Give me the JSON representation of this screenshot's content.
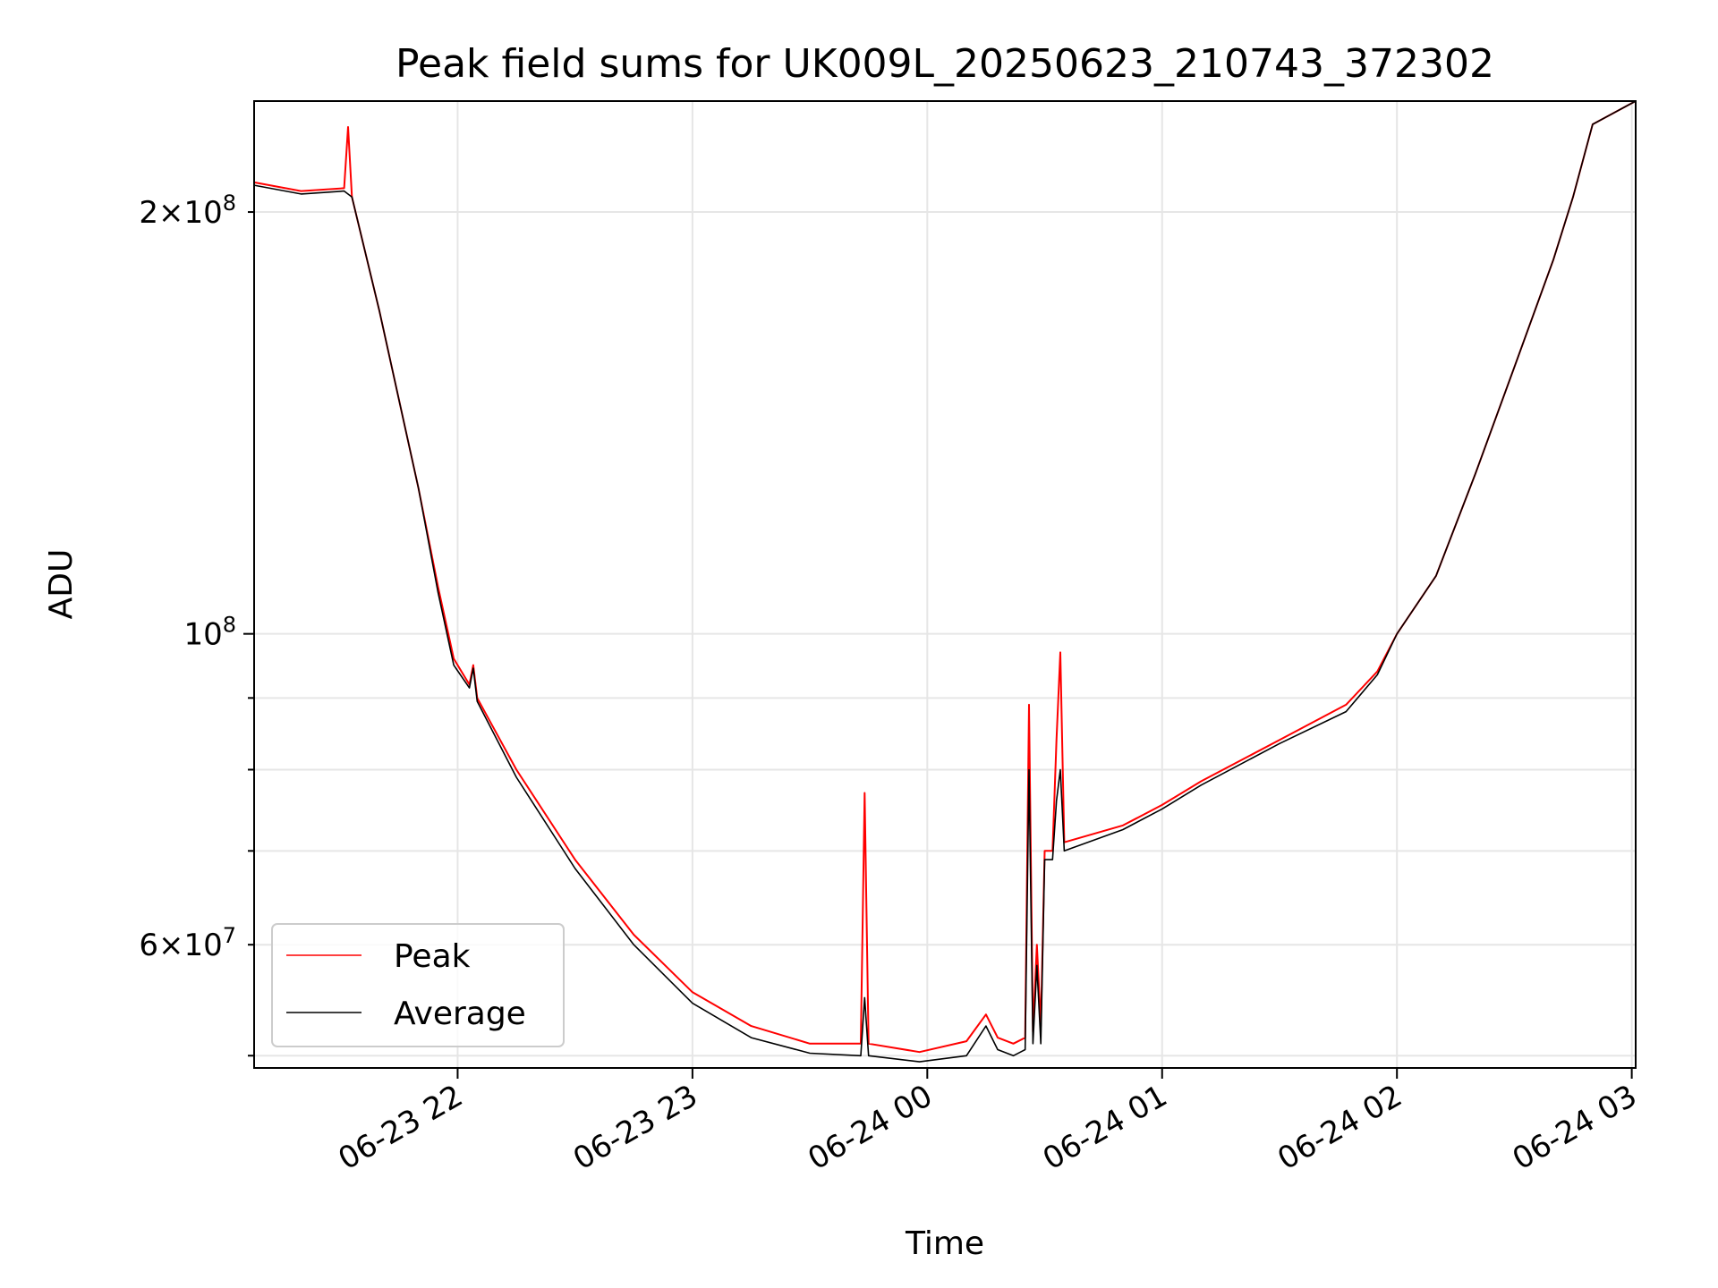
{
  "chart_data": {
    "type": "line",
    "title": "Peak field sums for UK009L_20250623_210743_372302",
    "xlabel": "Time",
    "ylabel": "ADU",
    "y_scale": "log",
    "ylim": [
      49000000,
      240000000
    ],
    "xlim": [
      "2025-06-23 21:08",
      "2025-06-24 03:01"
    ],
    "grid": true,
    "legend_position": "lower-left",
    "x_ticks": [
      {
        "label": "06-23 22",
        "t": "2025-06-23 22:00"
      },
      {
        "label": "06-23 23",
        "t": "2025-06-23 23:00"
      },
      {
        "label": "06-24 00",
        "t": "2025-06-24 00:00"
      },
      {
        "label": "06-24 01",
        "t": "2025-06-24 01:00"
      },
      {
        "label": "06-24 02",
        "t": "2025-06-24 02:00"
      },
      {
        "label": "06-24 03",
        "t": "2025-06-24 03:00"
      }
    ],
    "y_ticks_major": [
      {
        "label_base": "10",
        "label_exp": "8",
        "label_coef": "",
        "value": 100000000
      }
    ],
    "y_ticks_minor_labeled": [
      {
        "label_coef": "2",
        "label_base": "10",
        "label_exp": "8",
        "value": 200000000
      },
      {
        "label_coef": "6",
        "label_base": "10",
        "label_exp": "7",
        "value": 60000000
      }
    ],
    "y_ticks_minor_unlabeled": [
      50000000,
      70000000,
      80000000,
      90000000
    ],
    "series": [
      {
        "name": "Peak",
        "color": "#ff0000",
        "x": [
          "2025-06-23 21:08",
          "2025-06-23 21:20",
          "2025-06-23 21:31",
          "2025-06-23 21:32",
          "2025-06-23 21:33",
          "2025-06-23 21:40",
          "2025-06-23 21:50",
          "2025-06-23 21:55",
          "2025-06-23 21:59",
          "2025-06-23 22:03",
          "2025-06-23 22:04",
          "2025-06-23 22:05",
          "2025-06-23 22:15",
          "2025-06-23 22:30",
          "2025-06-23 22:45",
          "2025-06-23 23:00",
          "2025-06-23 23:15",
          "2025-06-23 23:30",
          "2025-06-23 23:43",
          "2025-06-23 23:44",
          "2025-06-23 23:45",
          "2025-06-23 23:58",
          "2025-06-24 00:10",
          "2025-06-24 00:15",
          "2025-06-24 00:18",
          "2025-06-24 00:22",
          "2025-06-24 00:25",
          "2025-06-24 00:26",
          "2025-06-24 00:27",
          "2025-06-24 00:28",
          "2025-06-24 00:29",
          "2025-06-24 00:30",
          "2025-06-24 00:32",
          "2025-06-24 00:33",
          "2025-06-24 00:34",
          "2025-06-24 00:35",
          "2025-06-24 00:50",
          "2025-06-24 01:00",
          "2025-06-24 01:10",
          "2025-06-24 01:30",
          "2025-06-24 01:47",
          "2025-06-24 01:55",
          "2025-06-24 02:00",
          "2025-06-24 02:10",
          "2025-06-24 02:20",
          "2025-06-24 02:30",
          "2025-06-24 02:40",
          "2025-06-24 02:45",
          "2025-06-24 02:50",
          "2025-06-24 03:01"
        ],
        "y": [
          210000000,
          207000000,
          208000000,
          230000000,
          205000000,
          170000000,
          127000000,
          108000000,
          96000000,
          92000000,
          95000000,
          90000000,
          80000000,
          69000000,
          61000000,
          55500000,
          52500000,
          51000000,
          51000000,
          77000000,
          51000000,
          50300000,
          51200000,
          53500000,
          51500000,
          51000000,
          51500000,
          89000000,
          52000000,
          60000000,
          52500000,
          70000000,
          70000000,
          84000000,
          97000000,
          71000000,
          73000000,
          75500000,
          78500000,
          84000000,
          89000000,
          94000000,
          100000000,
          110000000,
          130000000,
          155000000,
          185000000,
          205000000,
          231000000,
          240000000
        ]
      },
      {
        "name": "Average",
        "color": "#000000",
        "x": [
          "2025-06-23 21:08",
          "2025-06-23 21:20",
          "2025-06-23 21:31",
          "2025-06-23 21:33",
          "2025-06-23 21:40",
          "2025-06-23 21:50",
          "2025-06-23 21:55",
          "2025-06-23 21:59",
          "2025-06-23 22:03",
          "2025-06-23 22:04",
          "2025-06-23 22:05",
          "2025-06-23 22:15",
          "2025-06-23 22:30",
          "2025-06-23 22:45",
          "2025-06-23 23:00",
          "2025-06-23 23:15",
          "2025-06-23 23:30",
          "2025-06-23 23:43",
          "2025-06-23 23:44",
          "2025-06-23 23:45",
          "2025-06-23 23:58",
          "2025-06-24 00:10",
          "2025-06-24 00:15",
          "2025-06-24 00:18",
          "2025-06-24 00:22",
          "2025-06-24 00:25",
          "2025-06-24 00:26",
          "2025-06-24 00:27",
          "2025-06-24 00:28",
          "2025-06-24 00:29",
          "2025-06-24 00:30",
          "2025-06-24 00:32",
          "2025-06-24 00:33",
          "2025-06-24 00:34",
          "2025-06-24 00:35",
          "2025-06-24 00:50",
          "2025-06-24 01:00",
          "2025-06-24 01:10",
          "2025-06-24 01:30",
          "2025-06-24 01:47",
          "2025-06-24 01:55",
          "2025-06-24 02:00",
          "2025-06-24 02:10",
          "2025-06-24 02:20",
          "2025-06-24 02:30",
          "2025-06-24 02:40",
          "2025-06-24 02:45",
          "2025-06-24 02:50",
          "2025-06-24 03:01"
        ],
        "y": [
          209000000,
          206000000,
          207000000,
          205000000,
          170000000,
          127000000,
          107000000,
          95000000,
          91500000,
          94500000,
          89500000,
          79000000,
          68000000,
          60000000,
          54500000,
          51500000,
          50200000,
          50000000,
          55000000,
          50000000,
          49500000,
          50000000,
          52500000,
          50500000,
          50000000,
          50500000,
          80000000,
          51000000,
          58000000,
          51000000,
          69000000,
          69000000,
          76000000,
          80000000,
          70000000,
          72500000,
          75000000,
          78000000,
          83500000,
          88000000,
          93500000,
          100000000,
          110000000,
          130000000,
          155000000,
          185000000,
          205000000,
          231000000,
          240000000
        ]
      }
    ]
  }
}
